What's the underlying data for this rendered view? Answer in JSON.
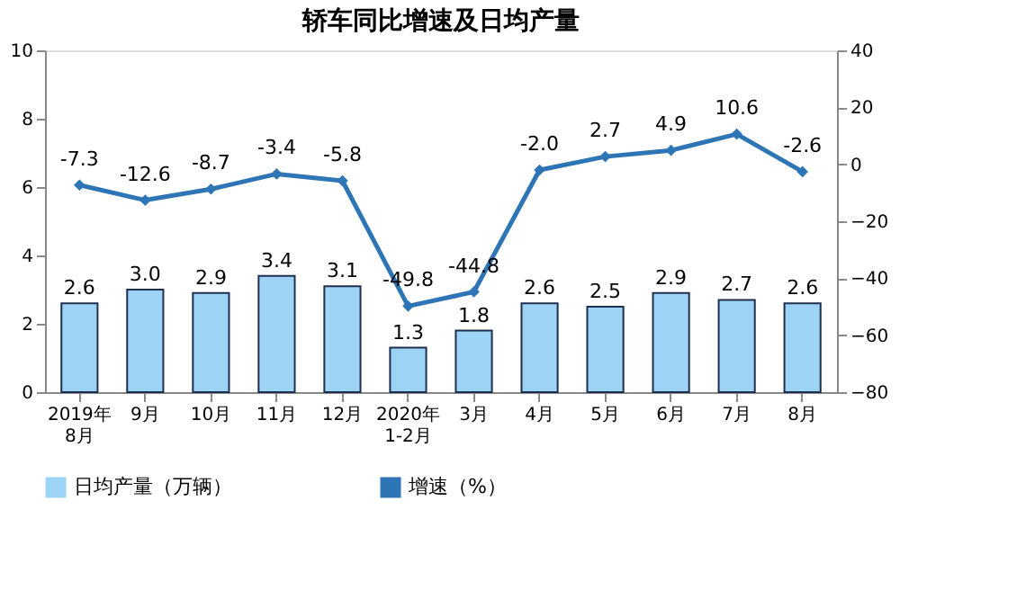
{
  "chart_data": {
    "type": "bar",
    "title": "轿车同比增速及日均产量",
    "categories": [
      "2019年\n8月",
      "9月",
      "10月",
      "11月",
      "12月",
      "2020年\n1-2月",
      "3月",
      "4月",
      "5月",
      "6月",
      "7月",
      "8月"
    ],
    "series": [
      {
        "name": "日均产量（万辆）",
        "color": "#9dd3f5",
        "values": [
          2.6,
          3.0,
          2.9,
          3.4,
          3.1,
          1.3,
          1.8,
          2.6,
          2.5,
          2.9,
          2.7,
          2.6
        ],
        "value_labels": [
          "2.6",
          "3.0",
          "2.9",
          "3.4",
          "3.1",
          "1.3",
          "1.8",
          "2.6",
          "2.5",
          "2.9",
          "2.7",
          "2.6"
        ]
      },
      {
        "name": "增速（%）",
        "type": "line",
        "axis": "y2",
        "color": "#2e75b6",
        "marker": "diamond",
        "values": [
          -7.3,
          -12.6,
          -8.7,
          -3.4,
          -5.8,
          -49.8,
          -44.8,
          -2.0,
          2.7,
          4.9,
          10.6,
          -2.6
        ],
        "value_labels": [
          "-7.3",
          "-12.6",
          "-8.7",
          "-3.4",
          "-5.8",
          "-49.8",
          "-44.8",
          "-2.0",
          "2.7",
          "4.9",
          "10.6",
          "-2.6"
        ]
      }
    ],
    "ylim": [
      0,
      10
    ],
    "yticks": [
      0,
      2,
      4,
      6,
      8,
      10
    ],
    "y2lim": [
      -80,
      40
    ],
    "y2ticks": [
      -80,
      -60,
      -40,
      -20,
      0,
      20,
      40
    ],
    "grid": false,
    "legend": "bottom"
  }
}
